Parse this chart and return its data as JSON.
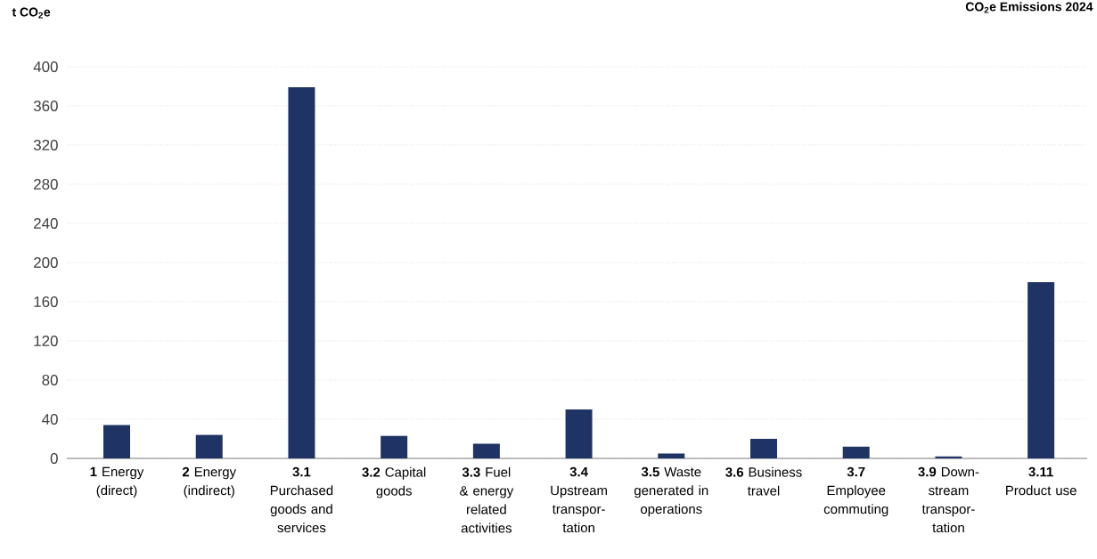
{
  "chart_data": {
    "type": "bar",
    "title": "CO$_{2}$e Emissions 2024",
    "ylabel": "t CO$_{2}$e",
    "categories": [
      "**1** Energy (direct)",
      "**2** Energy (indirect)",
      "**3.1** Purchased goods and services",
      "**3.2** Capital goods",
      "**3.3** Fuel & energy related activities",
      "**3.4** Upstream transpor-tation",
      "**3.5** Waste generated in operations",
      "**3.6** Business travel",
      "**3.7** Employee commuting",
      "**3.9** Down-stream transpor-tation",
      "**3.11** Product use"
    ],
    "values": [
      34,
      24,
      379,
      23,
      15,
      50,
      5,
      20,
      12,
      2,
      180
    ],
    "color": "#1f3464",
    "ylim": [
      0,
      400
    ],
    "yticks": [
      0,
      40,
      80,
      120,
      160,
      200,
      240,
      280,
      320,
      360,
      400
    ],
    "grid": "y",
    "legend": false
  }
}
